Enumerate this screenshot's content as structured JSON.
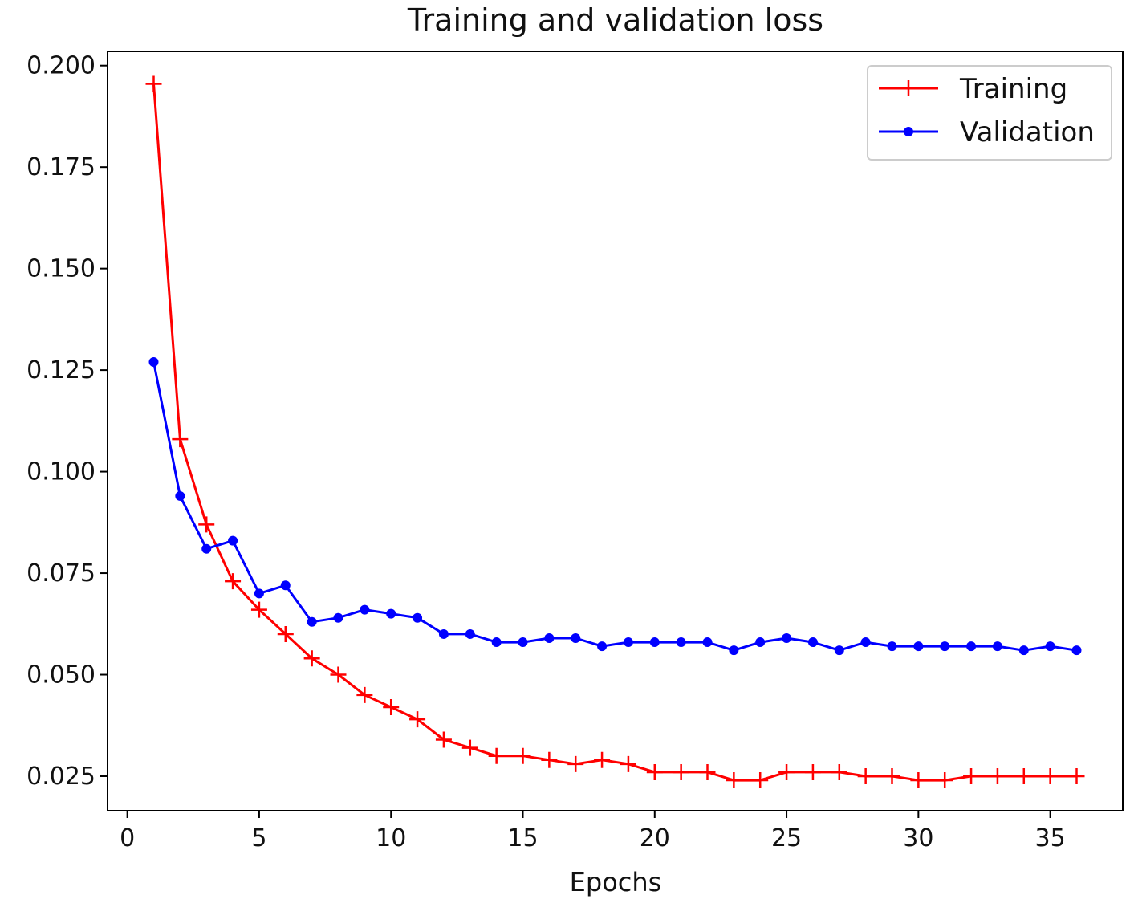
{
  "chart_data": {
    "type": "line",
    "title": "Training and validation loss",
    "xlabel": "Epochs",
    "ylabel": "",
    "xlim": [
      -0.75,
      37.75
    ],
    "ylim": [
      0.0165,
      0.2035
    ],
    "xticks": [
      0,
      5,
      10,
      15,
      20,
      25,
      30,
      35
    ],
    "xtick_labels": [
      "0",
      "5",
      "10",
      "15",
      "20",
      "25",
      "30",
      "35"
    ],
    "yticks": [
      0.025,
      0.05,
      0.075,
      0.1,
      0.125,
      0.15,
      0.175,
      0.2
    ],
    "ytick_labels": [
      "0.025",
      "0.050",
      "0.075",
      "0.100",
      "0.125",
      "0.150",
      "0.175",
      "0.200"
    ],
    "grid": false,
    "legend_position": "top-right",
    "x": [
      1,
      2,
      3,
      4,
      5,
      6,
      7,
      8,
      9,
      10,
      11,
      12,
      13,
      14,
      15,
      16,
      17,
      18,
      19,
      20,
      21,
      22,
      23,
      24,
      25,
      26,
      27,
      28,
      29,
      30,
      31,
      32,
      33,
      34,
      35,
      36
    ],
    "series": [
      {
        "name": "Training",
        "color": "#ff0000",
        "marker": "plus",
        "values": [
          0.1955,
          0.108,
          0.087,
          0.073,
          0.066,
          0.06,
          0.054,
          0.05,
          0.045,
          0.042,
          0.039,
          0.034,
          0.032,
          0.03,
          0.03,
          0.029,
          0.028,
          0.029,
          0.028,
          0.026,
          0.026,
          0.026,
          0.024,
          0.024,
          0.026,
          0.026,
          0.026,
          0.025,
          0.025,
          0.024,
          0.024,
          0.025,
          0.025,
          0.025,
          0.025,
          0.025
        ]
      },
      {
        "name": "Validation",
        "color": "#0000ff",
        "marker": "dot",
        "values": [
          0.127,
          0.094,
          0.081,
          0.083,
          0.07,
          0.072,
          0.063,
          0.064,
          0.066,
          0.065,
          0.064,
          0.06,
          0.06,
          0.058,
          0.058,
          0.059,
          0.059,
          0.057,
          0.058,
          0.058,
          0.058,
          0.058,
          0.056,
          0.058,
          0.059,
          0.058,
          0.056,
          0.058,
          0.057,
          0.057,
          0.057,
          0.057,
          0.057,
          0.056,
          0.057,
          0.056
        ]
      }
    ]
  }
}
